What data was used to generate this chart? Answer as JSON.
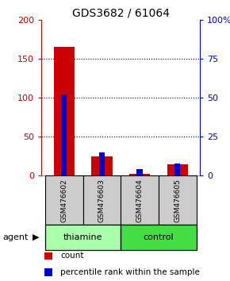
{
  "title": "GDS3682 / 61064",
  "samples": [
    "GSM476602",
    "GSM476603",
    "GSM476604",
    "GSM476605"
  ],
  "counts": [
    165,
    25,
    2,
    15
  ],
  "percentiles": [
    52,
    15,
    4,
    8
  ],
  "left_ylim": [
    0,
    200
  ],
  "right_ylim": [
    0,
    100
  ],
  "left_yticks": [
    0,
    50,
    100,
    150,
    200
  ],
  "right_yticks": [
    0,
    25,
    50,
    75,
    100
  ],
  "right_yticklabels": [
    "0",
    "25",
    "50",
    "75",
    "100%"
  ],
  "left_color": "#cc0000",
  "right_color": "#0000cc",
  "red_bar_width": 0.55,
  "blue_bar_width": 0.15,
  "group_label": "agent",
  "legend_count": "count",
  "legend_pct": "percentile rank within the sample",
  "sample_bg_color": "#cccccc",
  "thiamine_color": "#aaffaa",
  "control_color": "#44dd44",
  "background_color": "#ffffff",
  "grid_yticks": [
    50,
    100,
    150
  ]
}
